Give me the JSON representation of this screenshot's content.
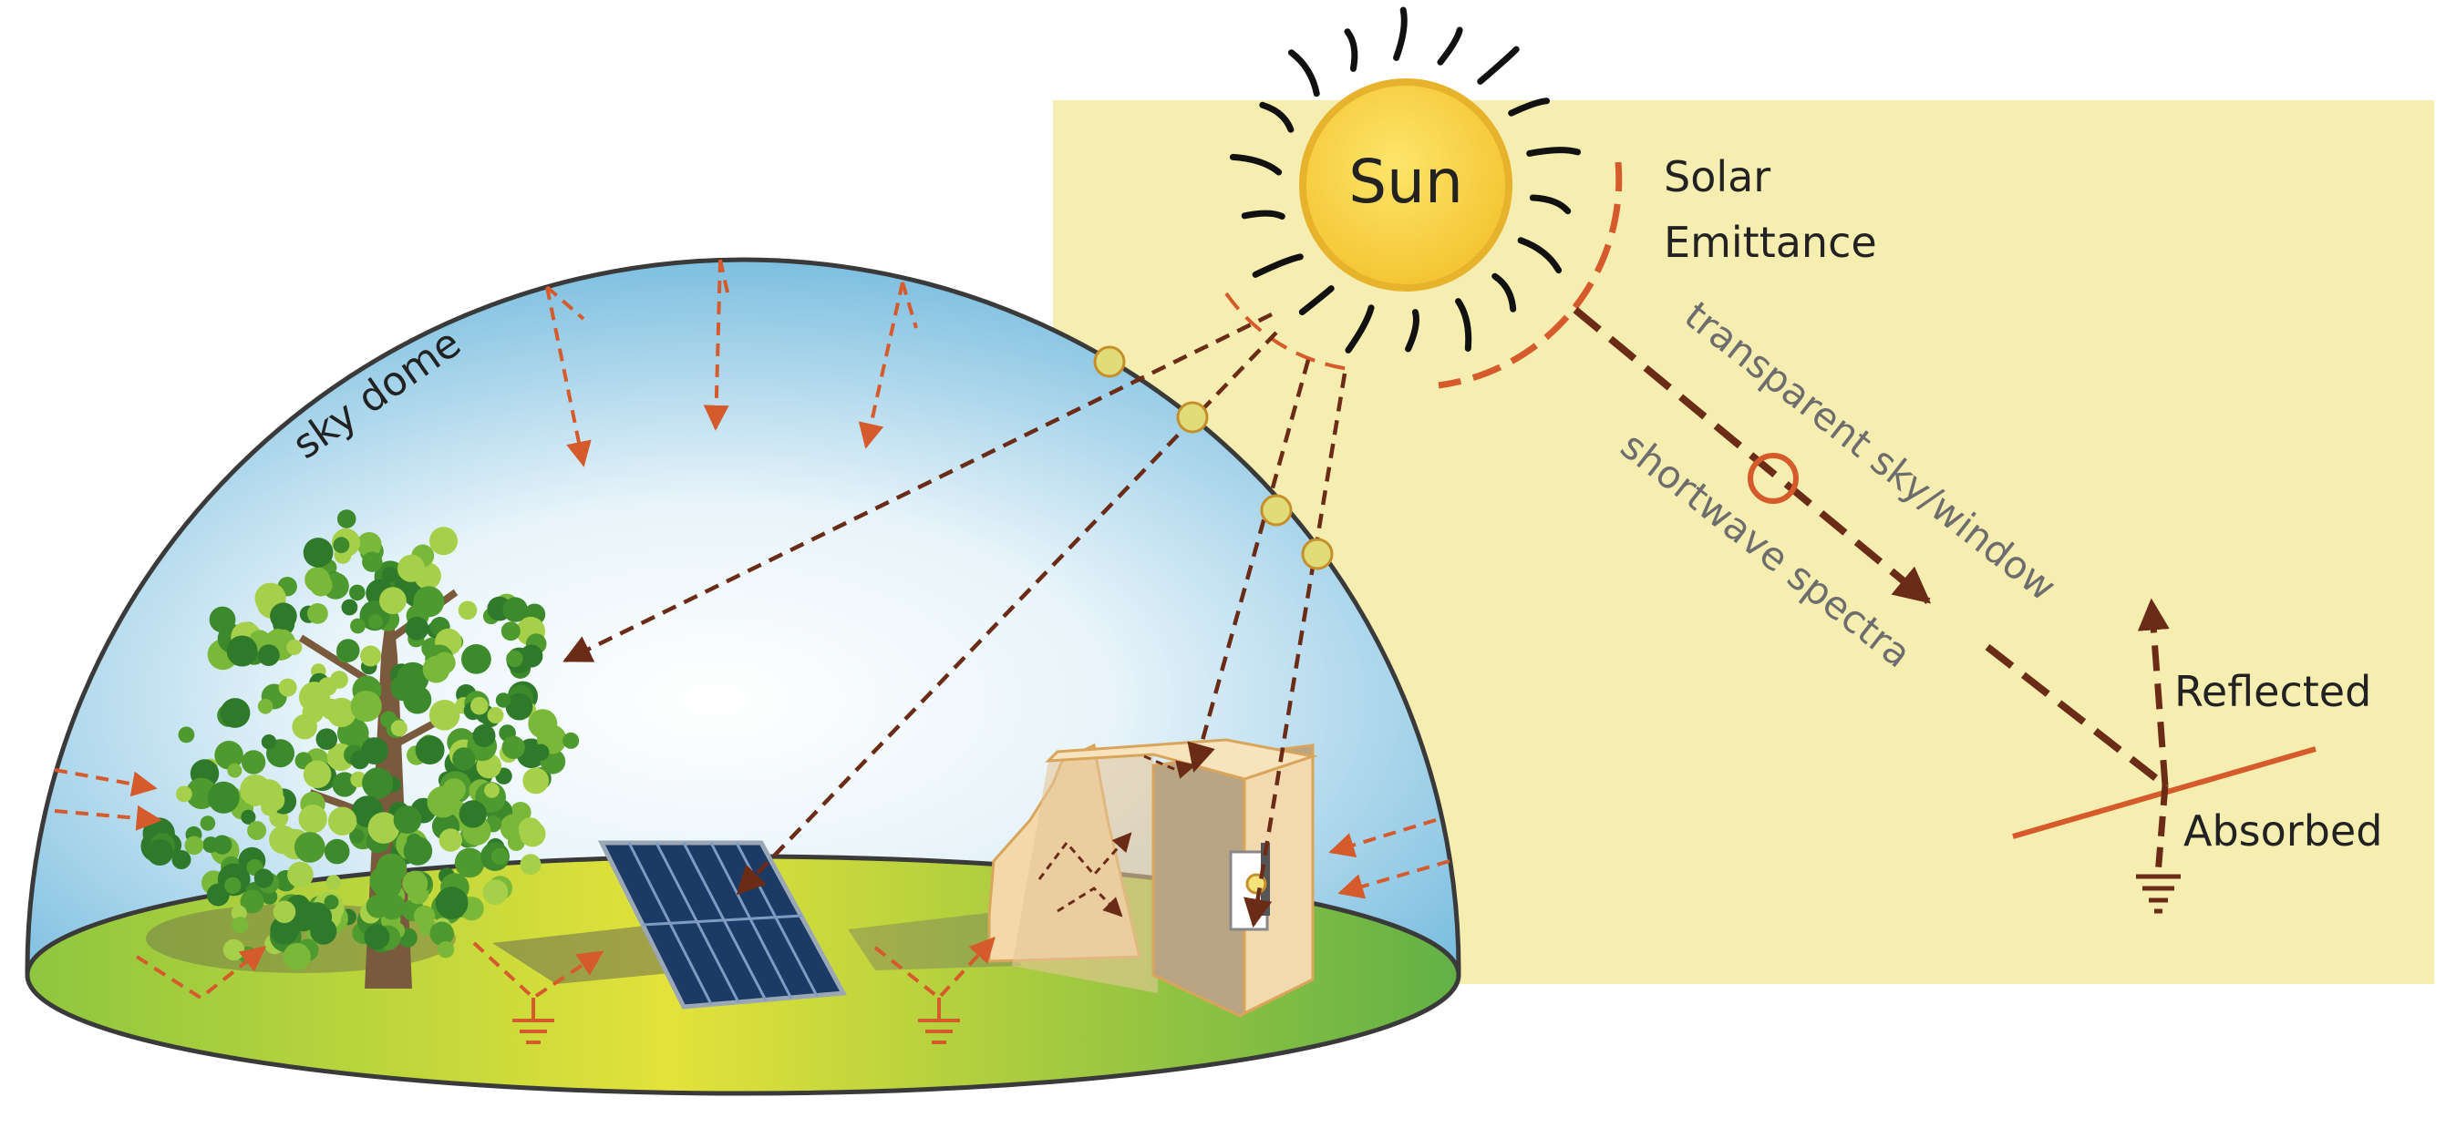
{
  "labels": {
    "sun": "Sun",
    "solar_emittance_line1": "Solar",
    "solar_emittance_line2": "Emittance",
    "sky_dome": "sky dome",
    "transparent": "transparent sky/window",
    "shortwave": "shortwave spectra",
    "reflected": "Reflected",
    "absorbed": "Absorbed"
  },
  "colors": {
    "panel": "#f6eeb0",
    "sun_fill": "#f8d640",
    "sun_edge": "#e7b32c",
    "ray_dark": "#6b2c17",
    "ray_orange": "#d55a2c",
    "ground_green": "#8ec63f",
    "ground_yellow": "#e3e23a",
    "sky_edge": "#7dbfe0",
    "dome_outline": "#3a3a3a",
    "label_gray": "#6d6d6d",
    "text_dark": "#222222"
  },
  "icons": [
    "sun-icon",
    "tree-icon",
    "solar-panel-icon",
    "building-icon",
    "ground-symbol-icon"
  ]
}
